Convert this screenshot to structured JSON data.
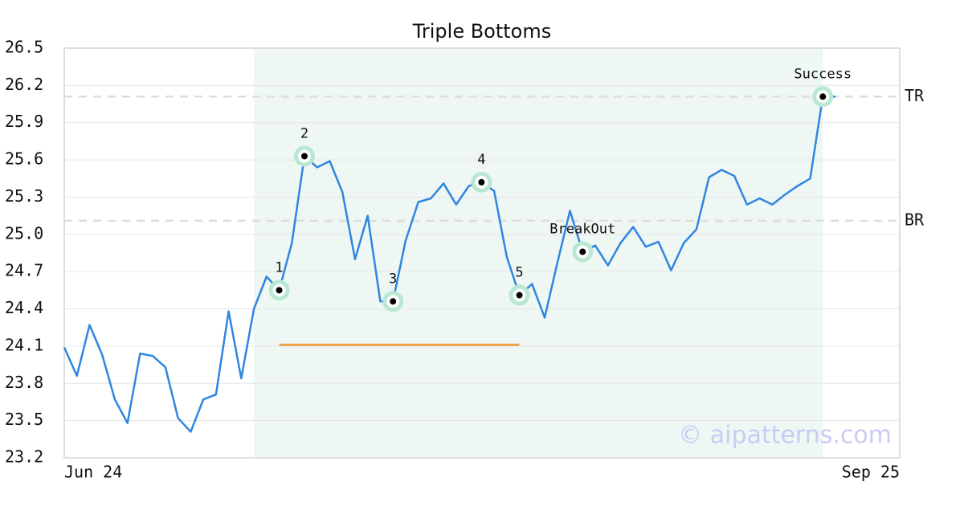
{
  "chart_data": {
    "type": "line",
    "title": "Triple Bottoms",
    "watermark": "© aipatterns.com",
    "xlabels": [
      "Jun 24",
      "Sep 25"
    ],
    "series": [
      {
        "color": "#2f86e0",
        "values": [
          24.09,
          23.86,
          24.27,
          24.03,
          23.67,
          23.48,
          24.04,
          24.02,
          23.93,
          23.52,
          23.41,
          23.67,
          23.71,
          24.38,
          23.84,
          24.4,
          24.66,
          24.55,
          24.93,
          25.63,
          25.54,
          25.59,
          25.34,
          24.8,
          25.15,
          24.46,
          24.46,
          24.95,
          25.26,
          25.29,
          25.41,
          25.24,
          25.39,
          25.42,
          25.35,
          24.82,
          24.51,
          24.6,
          24.33,
          24.77,
          25.19,
          24.86,
          24.91,
          24.75,
          24.93,
          25.06,
          24.9,
          24.94,
          24.71,
          24.93,
          25.04,
          25.46,
          25.52,
          25.47,
          25.24,
          25.29,
          25.24,
          25.32,
          25.39,
          25.45,
          26.11,
          26.11
        ]
      }
    ],
    "ylim": [
      23.2,
      26.5
    ],
    "yticks": [
      23.2,
      23.5,
      23.8,
      24.1,
      24.4,
      24.7,
      25.0,
      25.3,
      25.6,
      25.9,
      26.2,
      26.5
    ],
    "grid": true,
    "highlight_range": [
      15,
      60
    ],
    "levels": [
      {
        "label": "TR",
        "value": 26.11
      },
      {
        "label": "BR",
        "value": 25.11
      }
    ],
    "support": {
      "value": 24.11,
      "from": 17,
      "to": 36,
      "color": "#f5a04a"
    },
    "annotations": [
      {
        "label": "1",
        "index": 17
      },
      {
        "label": "2",
        "index": 19
      },
      {
        "label": "3",
        "index": 26
      },
      {
        "label": "4",
        "index": 33
      },
      {
        "label": "5",
        "index": 36
      },
      {
        "label": "BreakOut",
        "index": 41
      },
      {
        "label": "Success",
        "index": 60
      }
    ]
  }
}
